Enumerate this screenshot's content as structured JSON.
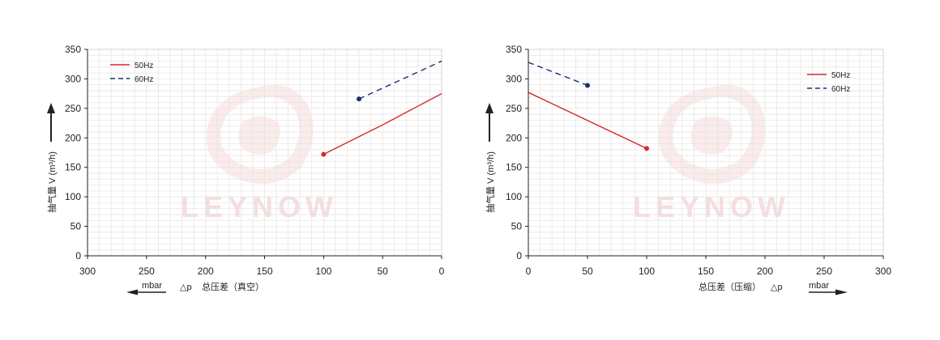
{
  "colors": {
    "series_50hz": "#d62b2b",
    "series_60hz": "#1f2f6b",
    "grid": "#e3e3e3",
    "axis": "#222222",
    "watermark": "#f6dede"
  },
  "watermark": {
    "text": "LEYNOW",
    "icon": "leynow-logo-icon"
  },
  "chart_data": [
    {
      "type": "line",
      "title": "",
      "ylabel": "抽气量 V (m³/h)",
      "xlabel_symbol": "△p",
      "xlabel": "总压差（真空）",
      "unit": "mbar",
      "xlim": [
        300,
        0
      ],
      "x_reversed": true,
      "ylim": [
        0,
        350
      ],
      "x_ticks": [
        300,
        250,
        200,
        150,
        100,
        50,
        0
      ],
      "y_ticks": [
        0,
        50,
        100,
        150,
        200,
        250,
        300,
        350
      ],
      "grid": true,
      "legend_position": "top-left",
      "series": [
        {
          "name": "50Hz",
          "style": "solid",
          "points": [
            {
              "x": 100,
              "y": 172
            },
            {
              "x": 50,
              "y": 222
            },
            {
              "x": 0,
              "y": 275
            }
          ],
          "marker_at": 0
        },
        {
          "name": "60Hz",
          "style": "dashed",
          "points": [
            {
              "x": 70,
              "y": 266
            },
            {
              "x": 0,
              "y": 330
            }
          ],
          "marker_at": 0
        }
      ]
    },
    {
      "type": "line",
      "title": "",
      "ylabel": "抽气量 V (m³/h)",
      "xlabel_symbol": "△p",
      "xlabel": "总压差（压缩）",
      "unit": "mbar",
      "xlim": [
        0,
        300
      ],
      "x_reversed": false,
      "ylim": [
        0,
        350
      ],
      "x_ticks": [
        0,
        50,
        100,
        150,
        200,
        250,
        300
      ],
      "y_ticks": [
        0,
        50,
        100,
        150,
        200,
        250,
        300,
        350
      ],
      "grid": true,
      "legend_position": "top-right",
      "series": [
        {
          "name": "50Hz",
          "style": "solid",
          "points": [
            {
              "x": 0,
              "y": 277
            },
            {
              "x": 100,
              "y": 182
            }
          ],
          "marker_at": 1
        },
        {
          "name": "60Hz",
          "style": "dashed",
          "points": [
            {
              "x": 0,
              "y": 328
            },
            {
              "x": 50,
              "y": 289
            }
          ],
          "marker_at": 1
        }
      ]
    }
  ]
}
